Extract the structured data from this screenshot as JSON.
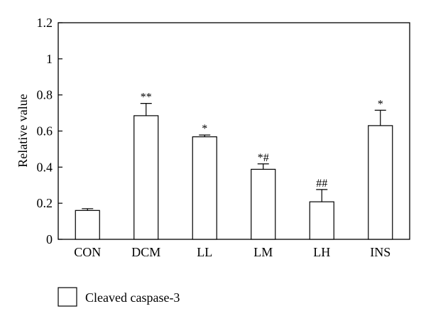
{
  "chart_data": {
    "type": "bar",
    "title": "",
    "xlabel": "",
    "ylabel": "Relative value",
    "ylim": [
      0,
      1.2
    ],
    "yticks": [
      "0",
      "0.2",
      "0.4",
      "0.6",
      "0.8",
      "1",
      "1.2"
    ],
    "ytick_values": [
      0,
      0.2,
      0.4,
      0.6,
      0.8,
      1.0,
      1.2
    ],
    "categories": [
      "CON",
      "DCM",
      "LL",
      "LM",
      "LH",
      "INS"
    ],
    "series": [
      {
        "name": "Cleaved caspase-3",
        "values": [
          0.16,
          0.685,
          0.568,
          0.388,
          0.208,
          0.63
        ],
        "errors": [
          0.01,
          0.068,
          0.01,
          0.03,
          0.068,
          0.085
        ],
        "annotations": [
          "",
          "**",
          "*",
          "*#",
          "##",
          "*"
        ]
      }
    ],
    "legend": {
      "position": "bottom-left",
      "entries": [
        "Cleaved caspase-3"
      ]
    },
    "grid": false,
    "colors": {
      "bar_fill": "#ffffff",
      "bar_stroke": "#000000"
    }
  }
}
